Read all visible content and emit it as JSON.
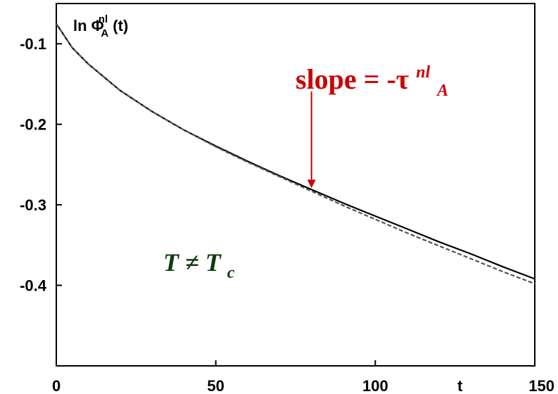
{
  "chart_data": {
    "type": "line",
    "ylabel": {
      "base": "ln Φ",
      "sup": "nl",
      "sub": "A",
      "suffix": "(t)"
    },
    "xlabel": "t",
    "xlim": [
      0,
      150
    ],
    "ylim": [
      -0.5,
      -0.05
    ],
    "xticks": [
      "0",
      "50",
      "100",
      "150"
    ],
    "yticks": [
      "-0.1",
      "-0.2",
      "-0.3",
      "-0.4"
    ],
    "grid": false,
    "series": [
      {
        "style": "solid",
        "color": "#000000",
        "x": [
          0,
          5,
          10,
          20,
          30,
          40,
          50,
          60,
          70,
          80,
          90,
          100,
          110,
          120,
          130,
          140,
          150
        ],
        "y": [
          -0.075,
          -0.105,
          -0.125,
          -0.158,
          -0.184,
          -0.207,
          -0.227,
          -0.246,
          -0.264,
          -0.281,
          -0.298,
          -0.314,
          -0.33,
          -0.346,
          -0.361,
          -0.377,
          -0.392
        ]
      },
      {
        "style": "dashed",
        "color": "#555555",
        "x": [
          0,
          5,
          10,
          20,
          30,
          40,
          50,
          60,
          70,
          80,
          90,
          100,
          110,
          120,
          130,
          140,
          150
        ],
        "y": [
          -0.075,
          -0.105,
          -0.125,
          -0.158,
          -0.184,
          -0.207,
          -0.228,
          -0.247,
          -0.265,
          -0.283,
          -0.301,
          -0.318,
          -0.335,
          -0.351,
          -0.367,
          -0.383,
          -0.398
        ]
      }
    ],
    "annotations": {
      "slope": {
        "prefix": "slope = -τ",
        "sup": "nl",
        "sub": "A",
        "color": "#cc0000",
        "arrow_x": 80
      },
      "temperature": {
        "main": "T ≠ T",
        "sub": "c",
        "color": "#0d3b0d"
      }
    }
  }
}
